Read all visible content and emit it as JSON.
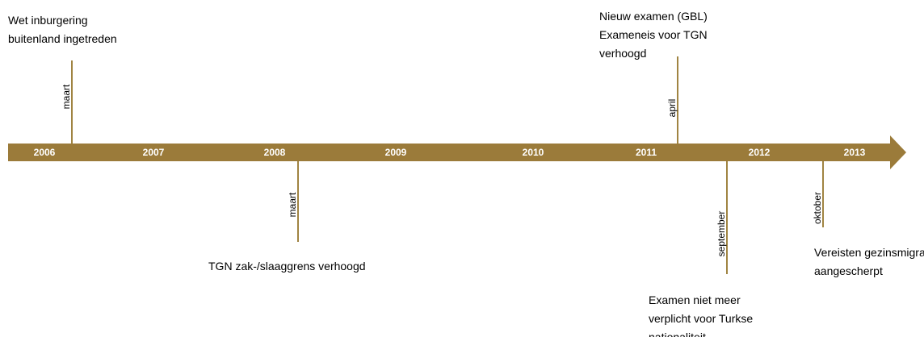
{
  "years": [
    "2006",
    "2007",
    "2008",
    "2009",
    "2010",
    "2011",
    "2012",
    "2013"
  ],
  "events": [
    {
      "month": "maart",
      "lines": [
        "Wet inburgering",
        "buitenland ingetreden"
      ]
    },
    {
      "month": "maart",
      "lines": [
        "TGN zak-/slaaggrens verhoogd"
      ]
    },
    {
      "month": "april",
      "lines": [
        "Nieuw examen (GBL)",
        "Exameneis voor TGN",
        "verhoogd"
      ]
    },
    {
      "month": "september",
      "lines": [
        "Examen niet meer",
        "verplicht voor Turkse",
        "nationaliteit"
      ]
    },
    {
      "month": "oktober",
      "lines": [
        "Vereisten gezinsmigratie",
        "aangescherpt"
      ]
    }
  ]
}
